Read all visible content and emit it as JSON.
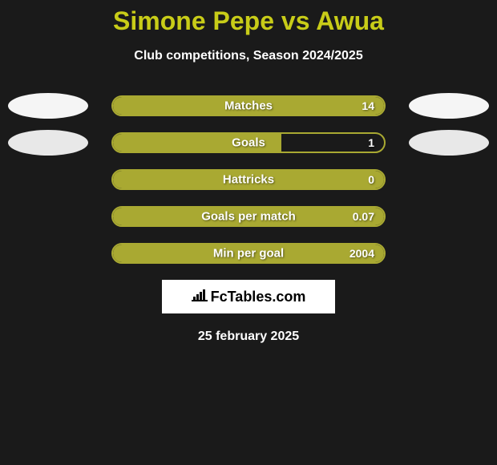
{
  "title": "Simone Pepe vs Awua",
  "subtitle": "Club competitions, Season 2024/2025",
  "colors": {
    "background": "#1a1a1a",
    "accent": "#c8cc18",
    "bar_border": "#a9a932",
    "bar_fill": "#a9a932",
    "ellipse_left": "#f5f5f5",
    "ellipse_right": "#f5f5f5",
    "text": "#ffffff"
  },
  "stats": [
    {
      "label": "Matches",
      "value": "14",
      "fill_pct": 100,
      "show_left_ellipse": true,
      "show_right_ellipse": true,
      "left_ellipse_color": "#f5f5f5",
      "right_ellipse_color": "#f5f5f5"
    },
    {
      "label": "Goals",
      "value": "1",
      "fill_pct": 62,
      "show_left_ellipse": true,
      "show_right_ellipse": true,
      "left_ellipse_color": "#e8e8e8",
      "right_ellipse_color": "#e8e8e8"
    },
    {
      "label": "Hattricks",
      "value": "0",
      "fill_pct": 100,
      "show_left_ellipse": false,
      "show_right_ellipse": false
    },
    {
      "label": "Goals per match",
      "value": "0.07",
      "fill_pct": 100,
      "show_left_ellipse": false,
      "show_right_ellipse": false
    },
    {
      "label": "Min per goal",
      "value": "2004",
      "fill_pct": 100,
      "show_left_ellipse": false,
      "show_right_ellipse": false
    }
  ],
  "logo": {
    "icon": "📊",
    "text": "FcTables.com"
  },
  "date": "25 february 2025"
}
